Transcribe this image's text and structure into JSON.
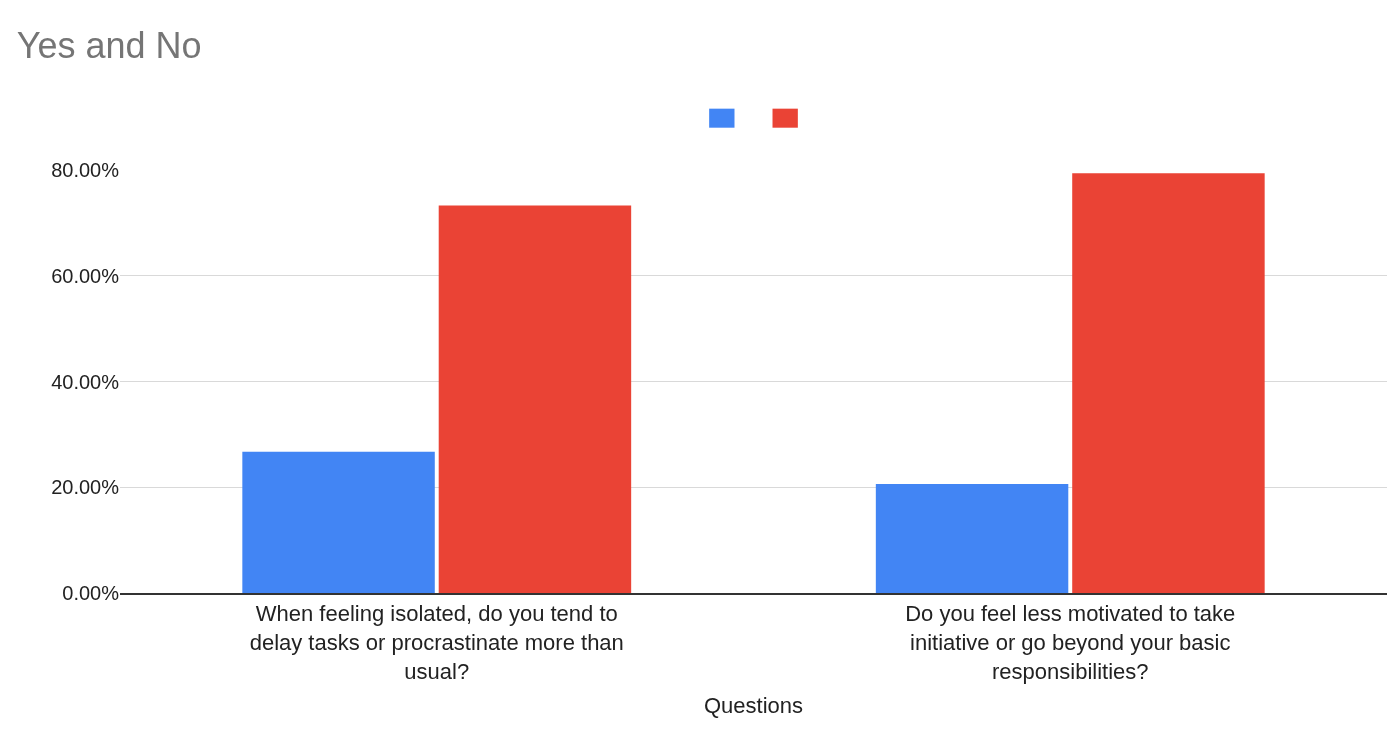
{
  "chart_data": {
    "type": "bar",
    "title": "Yes and No",
    "xlabel": "Questions",
    "categories": [
      "When feeling isolated, do you tend to delay tasks or procrastinate more than usual?",
      "Do you feel less motivated to take initiative or go beyond your basic responsibilities?"
    ],
    "series": [
      {
        "color": "#4285f4",
        "values": [
          26.7,
          20.6
        ]
      },
      {
        "color": "#ea4335",
        "values": [
          73.3,
          79.4
        ]
      }
    ],
    "ylim": [
      0,
      80
    ],
    "yticks": [
      {
        "value": 0,
        "label": "0.00%"
      },
      {
        "value": 20,
        "label": "20.00%"
      },
      {
        "value": 40,
        "label": "40.00%"
      },
      {
        "value": 60,
        "label": "60.00%"
      },
      {
        "value": 80,
        "label": "80.00%"
      }
    ],
    "grid": "y"
  }
}
